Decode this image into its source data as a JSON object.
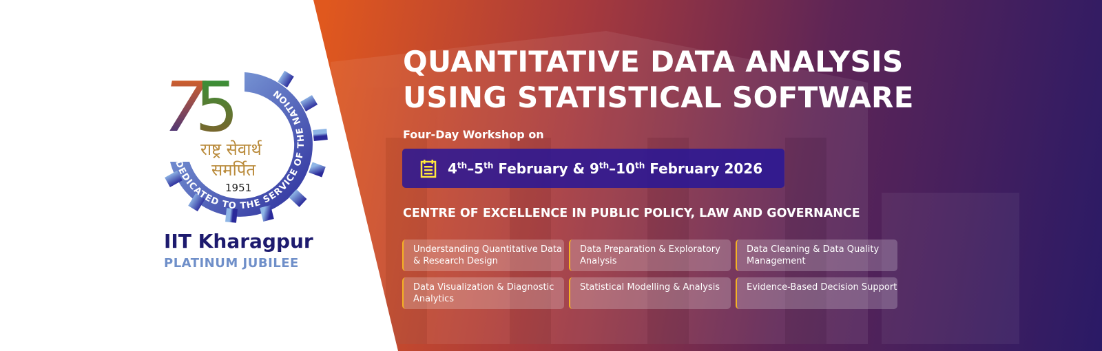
{
  "logo": {
    "number": "75",
    "hindi_line1": "राष्ट्र सेवार्थ",
    "hindi_line2": "समर्पित",
    "year": "1951",
    "ring_text": "DEDICATED TO THE SERVICE OF THE NATION",
    "institute": "IIT Kharagpur",
    "tagline": "PLATINUM JUBILEE"
  },
  "banner": {
    "title_line1": "QUANTITATIVE DATA ANALYSIS",
    "title_line2": "USING STATISTICAL SOFTWARE",
    "subtitle": "Four-Day Workshop on",
    "date": {
      "d1": "4",
      "s1": "th",
      "sep1": "–",
      "d2": "5",
      "s2": "th",
      "m1": " February & ",
      "d3": "9",
      "s3": "th",
      "sep2": "–",
      "d4": "10",
      "s4": "th",
      "m2": " February 2026"
    },
    "centre": "CENTRE OF EXCELLENCE IN PUBLIC POLICY, LAW AND GOVERNANCE",
    "topics": [
      "Understanding Quantitative Data & Research Design",
      "Data Preparation & Exploratory Analysis",
      "Data Cleaning & Data Quality Management",
      "Data Visualization & Diagnostic Analytics",
      "Statistical Modelling & Analysis",
      "Evidence-Based Decision Support"
    ]
  },
  "colors": {
    "orange": "#f0661a",
    "purple": "#2a1a66",
    "date_box": "#28169a",
    "accent": "#f5b323",
    "logo_blue": "#1d1a6e"
  }
}
